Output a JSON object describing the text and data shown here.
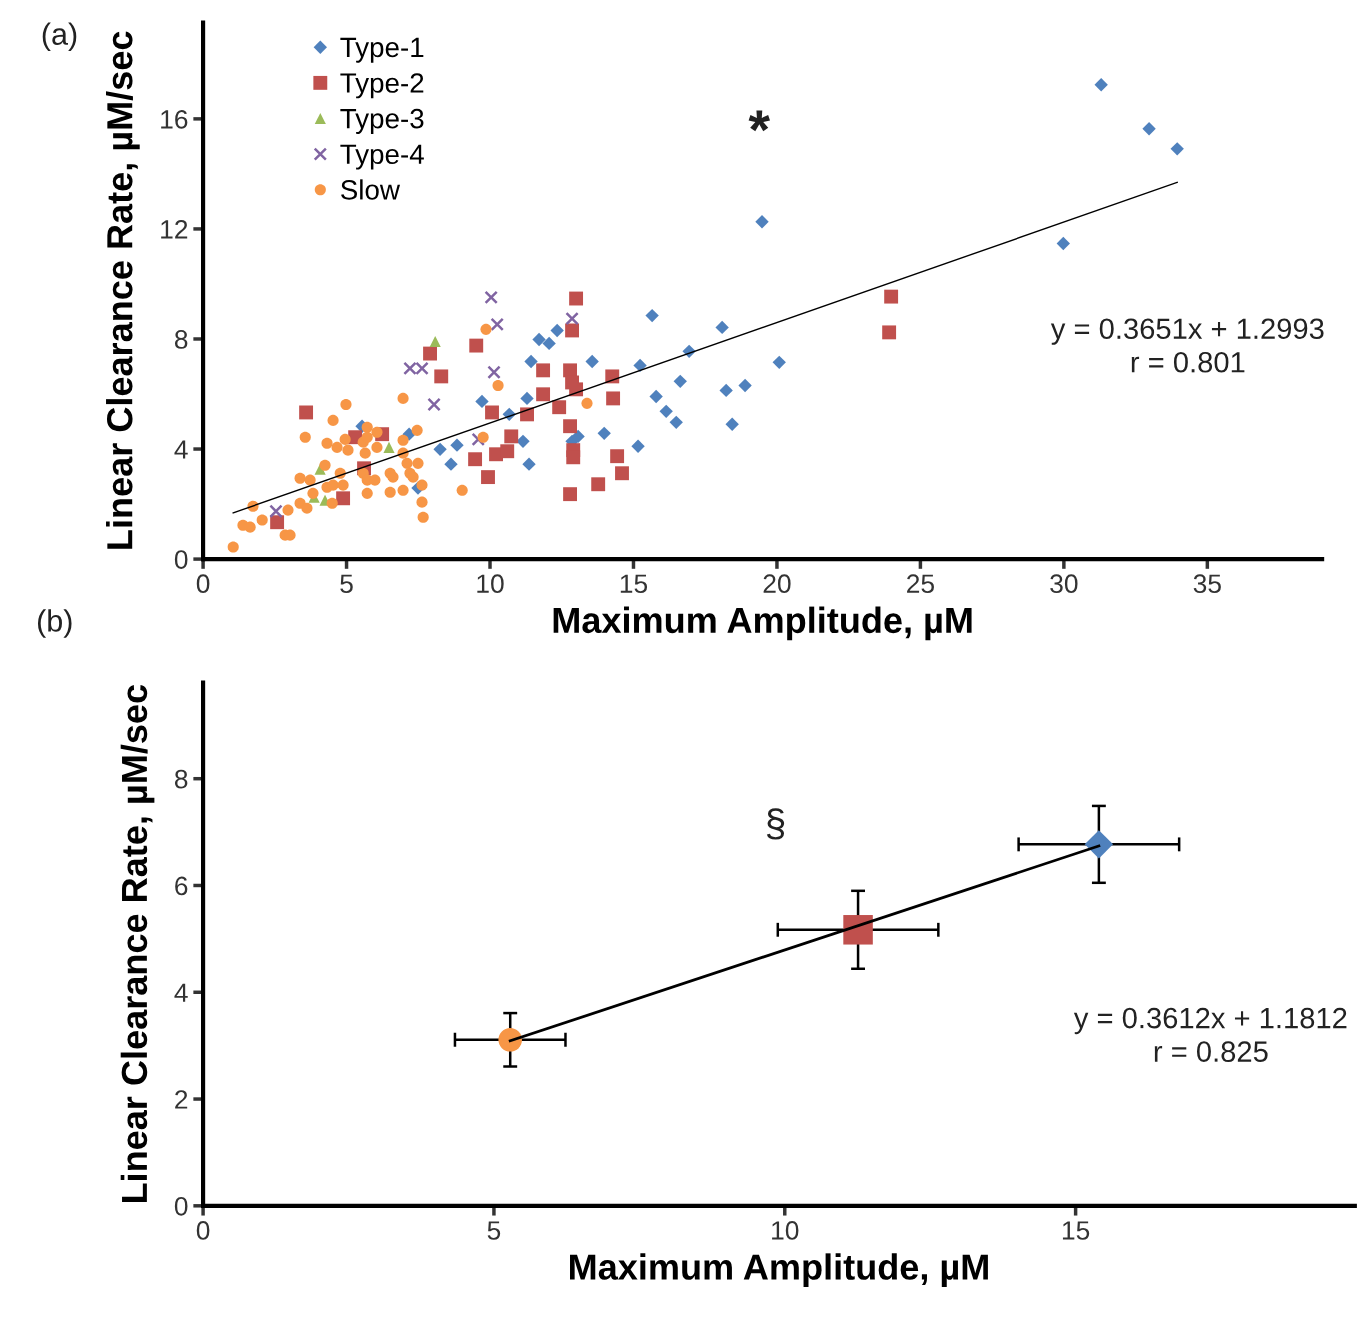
{
  "chart_data": [
    {
      "type": "scatter",
      "xlabel": "Maximum Amplitude, µM",
      "ylabel": "Linear Clearance Rate, µM/sec",
      "xlim": [
        0,
        39
      ],
      "xticks": [
        0,
        5,
        10,
        15,
        20,
        25,
        30,
        35
      ],
      "ylim": [
        0,
        19.5
      ],
      "yticks": [
        0,
        4,
        8,
        12,
        16
      ],
      "grid": false,
      "legend": "top left",
      "annotations": [
        "(a)",
        "*",
        "y = 0.3651x + 1.2993\nr = 0.801"
      ],
      "series": [
        {
          "name": "Type-1",
          "color": "#4f81bd",
          "marker": "diamond",
          "x": [
            5.54,
            7.18,
            7.49,
            8.26,
            8.64,
            8.85,
            9.72,
            10.67,
            11.15,
            11.29,
            11.36,
            11.43,
            11.71,
            12.06,
            12.34,
            12.86,
            13.07,
            13.56,
            13.98,
            15.16,
            15.23,
            15.65,
            15.79,
            16.14,
            16.49,
            16.63,
            16.94,
            18.09,
            18.23,
            18.44,
            18.89,
            20.08,
            19.48,
            29.98,
            31.3,
            32.97,
            33.95
          ],
          "values": [
            4.83,
            4.54,
            2.58,
            3.99,
            3.45,
            4.14,
            5.73,
            5.26,
            4.28,
            5.84,
            3.45,
            7.18,
            7.98,
            7.84,
            8.31,
            4.28,
            4.46,
            7.18,
            4.57,
            4.1,
            7.04,
            8.85,
            5.91,
            5.37,
            4.97,
            6.46,
            7.55,
            8.42,
            6.13,
            4.9,
            6.31,
            7.15,
            12.26,
            11.47,
            17.24,
            15.64,
            14.91
          ]
        },
        {
          "name": "Type-2",
          "color": "#c0504d",
          "marker": "square",
          "x": [
            2.58,
            3.59,
            4.88,
            5.3,
            5.61,
            6.24,
            7.91,
            8.3,
            9.52,
            9.48,
            9.93,
            10.07,
            10.21,
            10.6,
            10.74,
            11.29,
            11.85,
            11.85,
            12.41,
            12.79,
            12.86,
            13.0,
            12.86,
            13.0,
            12.79,
            12.9,
            12.9,
            12.79,
            13.77,
            14.26,
            14.29,
            14.43,
            14.6,
            23.98,
            23.91
          ],
          "values": [
            1.34,
            5.33,
            2.21,
            4.43,
            3.3,
            4.54,
            7.47,
            6.64,
            7.76,
            3.63,
            2.98,
            5.33,
            3.81,
            3.92,
            4.46,
            5.26,
            6.86,
            5.99,
            5.52,
            6.86,
            6.42,
            6.17,
            8.31,
            9.47,
            4.83,
            3.96,
            3.7,
            2.36,
            2.72,
            6.64,
            5.84,
            3.74,
            3.12,
            9.54,
            8.24
          ]
        },
        {
          "name": "Type-3",
          "color": "#9bbb59",
          "marker": "triangle",
          "x": [
            8.09,
            4.08,
            6.48,
            3.87,
            4.25
          ],
          "values": [
            7.91,
            3.27,
            4.06,
            2.25,
            2.14
          ]
        },
        {
          "name": "Type-4",
          "color": "#8064a2",
          "marker": "cross",
          "x": [
            2.54,
            7.21,
            7.63,
            8.05,
            9.59,
            10.04,
            10.25,
            10.14,
            12.86
          ],
          "values": [
            1.74,
            6.93,
            6.93,
            5.62,
            4.35,
            9.51,
            8.53,
            6.79,
            8.74
          ]
        },
        {
          "name": "Slow",
          "color": "#f79646",
          "marker": "circle",
          "x": [
            1.05,
            1.39,
            1.64,
            1.74,
            2.06,
            2.86,
            3.03,
            2.96,
            3.38,
            3.62,
            3.38,
            3.73,
            3.83,
            4.25,
            4.32,
            4.53,
            4.78,
            4.88,
            4.5,
            3.56,
            4.53,
            4.98,
            4.32,
            4.67,
            4.95,
            5.05,
            5.58,
            5.72,
            6.06,
            5.65,
            5.58,
            5.72,
            5.99,
            5.72,
            6.52,
            6.62,
            6.52,
            6.97,
            6.97,
            6.97,
            7.11,
            7.21,
            6.97,
            7.46,
            7.49,
            7.32,
            7.63,
            7.63,
            7.67,
            9.03,
            9.76,
            10.28,
            9.86,
            13.38,
            5.72,
            6.06
          ],
          "values": [
            0.44,
            1.23,
            1.16,
            1.92,
            1.42,
            0.87,
            0.87,
            1.78,
            2.03,
            1.85,
            2.94,
            2.87,
            2.39,
            3.41,
            2.61,
            2.69,
            3.12,
            2.69,
            2.03,
            4.43,
            5.04,
            5.62,
            4.21,
            4.06,
            4.35,
            3.96,
            4.25,
            4.79,
            4.06,
            3.85,
            3.12,
            2.87,
            2.87,
            2.39,
            3.12,
            2.98,
            2.43,
            5.84,
            4.32,
            3.85,
            3.48,
            3.12,
            2.5,
            4.68,
            3.48,
            2.98,
            2.69,
            2.07,
            1.52,
            2.5,
            4.43,
            6.31,
            8.35,
            5.66,
            4.43,
            4.61
          ]
        },
        {
          "type": "line",
          "color": "#000000",
          "marker": "none",
          "line_style": "solid",
          "x": [
            1.05,
            33.95
          ],
          "values": [
            1.68,
            13.69
          ]
        }
      ]
    },
    {
      "type": "scatter",
      "xlabel": "Maximum Amplitude, µM",
      "ylabel": "Linear Clearance Rate, µM/sec",
      "xlim": [
        0,
        19.8
      ],
      "xticks": [
        0,
        5,
        10,
        15
      ],
      "ylim": [
        0,
        9.8
      ],
      "yticks": [
        0,
        2,
        4,
        6,
        8
      ],
      "grid": false,
      "annotations": [
        "(b)",
        "§",
        "y = 0.3612x + 1.1812\nr = 0.825"
      ],
      "series": [
        {
          "color": "#f79646",
          "marker": "circle",
          "x": [
            5.28
          ],
          "values": [
            3.11
          ],
          "errors": [
            0.5
          ],
          "xerrors": [
            0.95
          ]
        },
        {
          "color": "#c0504d",
          "marker": "square",
          "x": [
            11.26
          ],
          "values": [
            5.17
          ],
          "errors": [
            0.73
          ],
          "xerrors": [
            1.38
          ]
        },
        {
          "color": "#4f81bd",
          "marker": "diamond",
          "x": [
            15.4
          ],
          "values": [
            6.77
          ],
          "errors": [
            0.72
          ],
          "xerrors": [
            1.38
          ]
        },
        {
          "type": "line",
          "color": "#000000",
          "marker": "none",
          "line_style": "solid",
          "x": [
            5.28,
            15.4
          ],
          "values": [
            3.09,
            6.74
          ]
        }
      ]
    }
  ]
}
